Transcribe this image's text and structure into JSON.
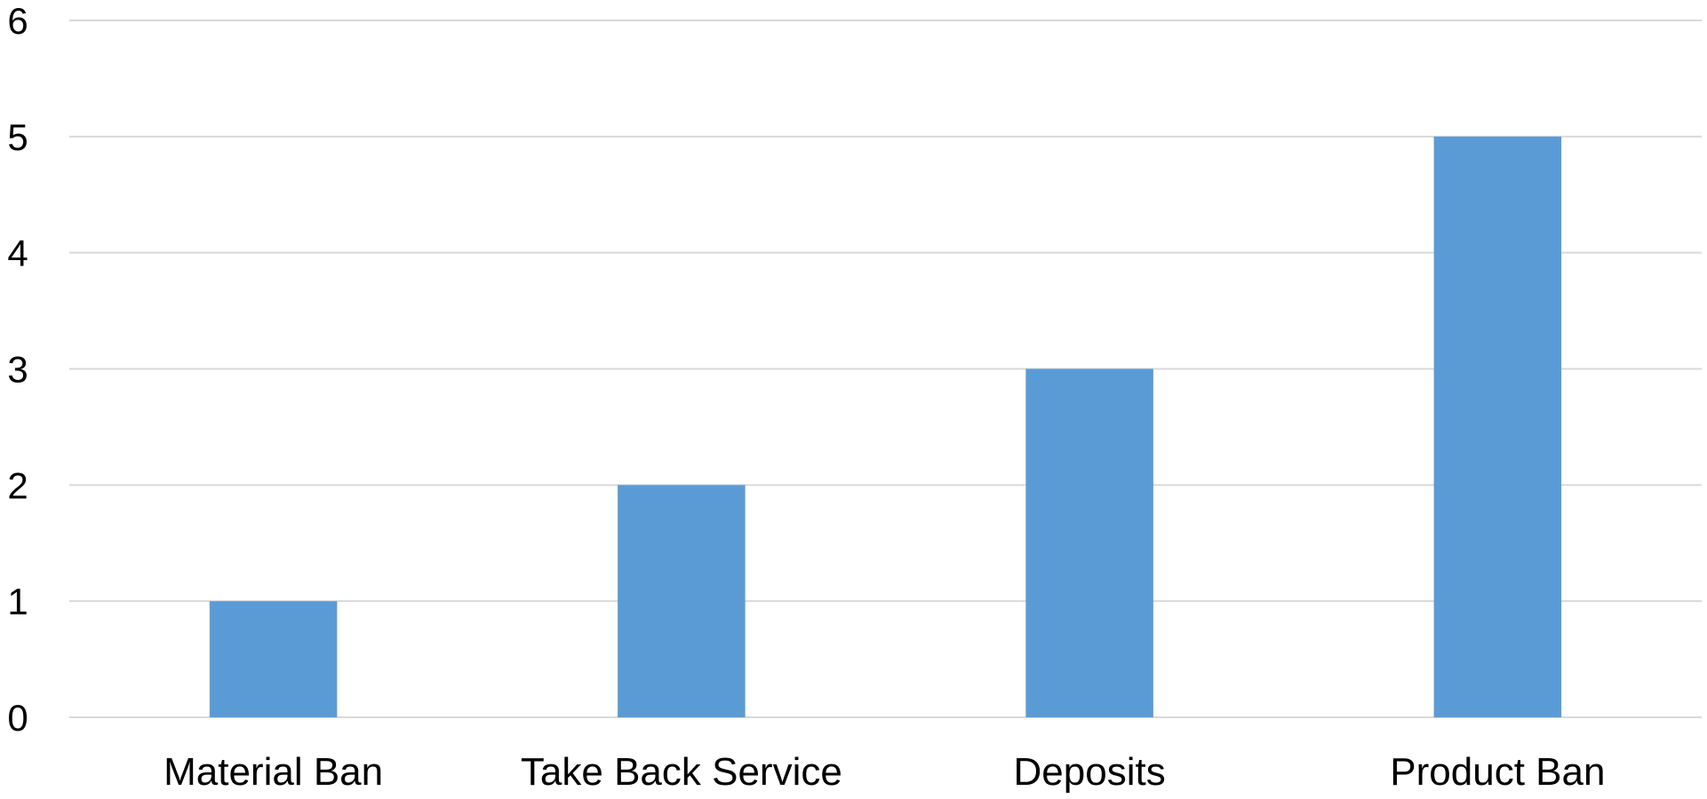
{
  "chart_data": {
    "type": "bar",
    "categories": [
      "Material Ban",
      "Take Back Service",
      "Deposits",
      "Product Ban"
    ],
    "values": [
      1,
      2,
      3,
      5
    ],
    "title": "",
    "xlabel": "",
    "ylabel": "",
    "ylim": [
      0,
      6
    ],
    "yticks": [
      0,
      1,
      2,
      3,
      4,
      5,
      6
    ],
    "grid": true,
    "legend": "none",
    "bar_color": "#5b9bd5",
    "grid_color": "#d9d9d9"
  }
}
